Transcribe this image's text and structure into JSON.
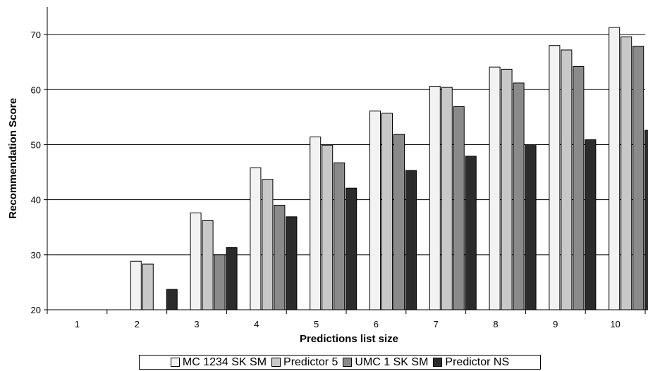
{
  "chart_data": {
    "type": "bar",
    "title": "",
    "xlabel": "Predictions list size",
    "ylabel": "Recommendation Score",
    "categories": [
      "1",
      "2",
      "3",
      "4",
      "5",
      "6",
      "7",
      "8",
      "9",
      "10"
    ],
    "ylim": [
      20,
      75
    ],
    "yticks": [
      20,
      30,
      40,
      50,
      60,
      70
    ],
    "grid": true,
    "legend_position": "bottom",
    "series": [
      {
        "name": "MC 1234 SK SM",
        "color": "#f2f2f2",
        "values": [
          null,
          28.8,
          37.6,
          45.8,
          51.4,
          56.1,
          60.6,
          64.1,
          68.0,
          71.3
        ]
      },
      {
        "name": "Predictor 5",
        "color": "#c8c8c8",
        "values": [
          null,
          28.3,
          36.2,
          43.7,
          49.9,
          55.7,
          60.4,
          63.7,
          67.2,
          69.6
        ]
      },
      {
        "name": "UMC 1 SK SM",
        "color": "#8a8a8a",
        "values": [
          null,
          null,
          30.0,
          39.0,
          46.7,
          51.9,
          56.9,
          61.2,
          64.2,
          67.9
        ]
      },
      {
        "name": "Predictor NS",
        "color": "#2b2b2b",
        "values": [
          null,
          23.7,
          31.3,
          36.9,
          42.1,
          45.3,
          47.9,
          50.0,
          50.9,
          52.6
        ]
      }
    ]
  }
}
